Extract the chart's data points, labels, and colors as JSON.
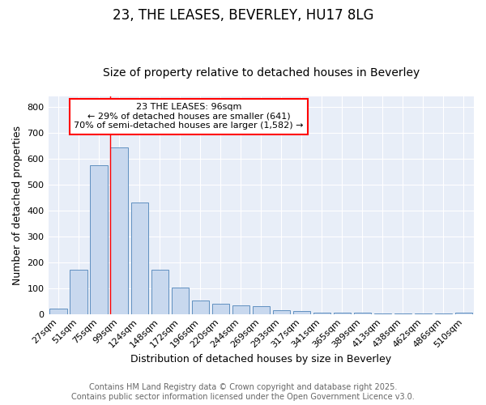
{
  "title1": "23, THE LEASES, BEVERLEY, HU17 8LG",
  "title2": "Size of property relative to detached houses in Beverley",
  "xlabel": "Distribution of detached houses by size in Beverley",
  "ylabel": "Number of detached properties",
  "categories": [
    "27sqm",
    "51sqm",
    "75sqm",
    "99sqm",
    "124sqm",
    "148sqm",
    "172sqm",
    "196sqm",
    "220sqm",
    "244sqm",
    "269sqm",
    "293sqm",
    "317sqm",
    "341sqm",
    "365sqm",
    "389sqm",
    "413sqm",
    "438sqm",
    "462sqm",
    "486sqm",
    "510sqm"
  ],
  "values": [
    20,
    170,
    575,
    643,
    430,
    170,
    102,
    52,
    40,
    33,
    30,
    13,
    10,
    5,
    5,
    4,
    3,
    2,
    1,
    1,
    6
  ],
  "bar_color": "#c8d8ee",
  "bar_edge_color": "#6090c0",
  "red_line_x": 3.0,
  "ylim": [
    0,
    840
  ],
  "yticks": [
    0,
    100,
    200,
    300,
    400,
    500,
    600,
    700,
    800
  ],
  "annotation_title": "23 THE LEASES: 96sqm",
  "annotation_line1": "← 29% of detached houses are smaller (641)",
  "annotation_line2": "70% of semi-detached houses are larger (1,582) →",
  "footer1": "Contains HM Land Registry data © Crown copyright and database right 2025.",
  "footer2": "Contains public sector information licensed under the Open Government Licence v3.0.",
  "bg_color": "#ffffff",
  "plot_bg_color": "#e8eef8",
  "title1_fontsize": 12,
  "title2_fontsize": 10,
  "axis_label_fontsize": 9,
  "tick_fontsize": 8,
  "footer_fontsize": 7,
  "annot_fontsize": 8
}
